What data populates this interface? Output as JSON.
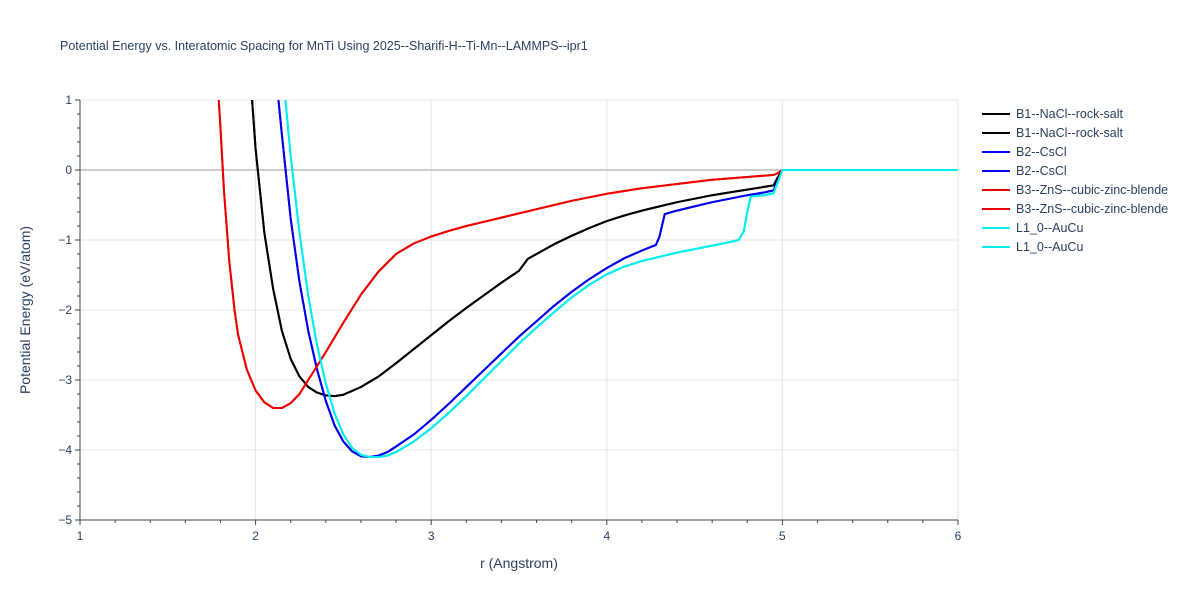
{
  "chart_data": {
    "type": "line",
    "title": "Potential Energy vs. Interatomic Spacing for MnTi Using 2025--Sharifi-H--Ti-Mn--LAMMPS--ipr1",
    "xlabel": "r (Angstrom)",
    "ylabel": "Potential Energy (eV/atom)",
    "xlim": [
      1,
      6
    ],
    "ylim": [
      -5,
      1
    ],
    "xticks": [
      1,
      2,
      3,
      4,
      5,
      6
    ],
    "xtick_labels": [
      "1",
      "2",
      "3",
      "4",
      "5",
      "6"
    ],
    "yticks": [
      1,
      0,
      -1,
      -2,
      -3,
      -4,
      -5
    ],
    "ytick_labels": [
      "1",
      "0",
      "−1",
      "−2",
      "−3",
      "−4",
      "−5"
    ],
    "grid": true,
    "legend_position": "top-right",
    "series": [
      {
        "name": "B1--NaCl--rock-salt",
        "color": "#000000",
        "x": [
          1.98,
          2.0,
          2.05,
          2.1,
          2.15,
          2.2,
          2.25,
          2.3,
          2.35,
          2.4,
          2.45,
          2.5,
          2.6,
          2.7,
          2.8,
          2.9,
          3.0,
          3.1,
          3.2,
          3.3,
          3.4,
          3.5,
          3.55,
          3.6,
          3.7,
          3.8,
          3.9,
          4.0,
          4.1,
          4.2,
          4.3,
          4.4,
          4.5,
          4.6,
          4.7,
          4.8,
          4.9,
          4.95,
          4.97,
          5.0,
          5.5,
          6.0
        ],
        "y": [
          1.0,
          0.3,
          -0.9,
          -1.7,
          -2.3,
          -2.7,
          -2.95,
          -3.1,
          -3.18,
          -3.22,
          -3.23,
          -3.21,
          -3.1,
          -2.95,
          -2.76,
          -2.56,
          -2.36,
          -2.16,
          -1.97,
          -1.79,
          -1.61,
          -1.44,
          -1.27,
          -1.2,
          -1.06,
          -0.94,
          -0.83,
          -0.73,
          -0.65,
          -0.58,
          -0.52,
          -0.46,
          -0.41,
          -0.36,
          -0.32,
          -0.28,
          -0.24,
          -0.22,
          -0.12,
          0.0,
          0.0,
          0.0
        ]
      },
      {
        "name": "B1--NaCl--rock-salt",
        "color": "#000000",
        "x": [
          1.98,
          2.0,
          2.05,
          2.1,
          2.15,
          2.2,
          2.25,
          2.3,
          2.35,
          2.4,
          2.45,
          2.5,
          2.6,
          2.7,
          2.8,
          2.9,
          3.0,
          3.1,
          3.2,
          3.3,
          3.4,
          3.5,
          3.55,
          3.6,
          3.7,
          3.8,
          3.9,
          4.0,
          4.1,
          4.2,
          4.3,
          4.4,
          4.5,
          4.6,
          4.7,
          4.8,
          4.9,
          4.95,
          4.97,
          5.0,
          5.5,
          6.0
        ],
        "y": [
          1.0,
          0.3,
          -0.9,
          -1.7,
          -2.3,
          -2.7,
          -2.95,
          -3.1,
          -3.18,
          -3.22,
          -3.23,
          -3.21,
          -3.1,
          -2.95,
          -2.76,
          -2.56,
          -2.36,
          -2.16,
          -1.97,
          -1.79,
          -1.61,
          -1.44,
          -1.27,
          -1.2,
          -1.06,
          -0.94,
          -0.83,
          -0.73,
          -0.65,
          -0.58,
          -0.52,
          -0.46,
          -0.41,
          -0.36,
          -0.32,
          -0.28,
          -0.24,
          -0.22,
          -0.12,
          0.0,
          0.0,
          0.0
        ]
      },
      {
        "name": "B2--CsCl",
        "color": "#0000ee",
        "x": [
          2.13,
          2.15,
          2.2,
          2.25,
          2.3,
          2.35,
          2.4,
          2.45,
          2.5,
          2.55,
          2.6,
          2.65,
          2.7,
          2.75,
          2.8,
          2.9,
          3.0,
          3.1,
          3.2,
          3.3,
          3.4,
          3.5,
          3.6,
          3.7,
          3.8,
          3.9,
          4.0,
          4.1,
          4.2,
          4.28,
          4.3,
          4.33,
          4.4,
          4.5,
          4.6,
          4.7,
          4.8,
          4.9,
          4.95,
          4.97,
          5.0,
          5.5,
          6.0
        ],
        "y": [
          1.0,
          0.5,
          -0.7,
          -1.6,
          -2.3,
          -2.85,
          -3.3,
          -3.65,
          -3.88,
          -4.02,
          -4.09,
          -4.1,
          -4.08,
          -4.03,
          -3.95,
          -3.78,
          -3.57,
          -3.34,
          -3.1,
          -2.86,
          -2.62,
          -2.38,
          -2.16,
          -1.94,
          -1.74,
          -1.56,
          -1.4,
          -1.26,
          -1.15,
          -1.07,
          -0.95,
          -0.63,
          -0.58,
          -0.52,
          -0.46,
          -0.41,
          -0.36,
          -0.32,
          -0.29,
          -0.18,
          0.0,
          0.0,
          0.0
        ]
      },
      {
        "name": "B2--CsCl",
        "color": "#0000ee",
        "x": [
          2.13,
          2.15,
          2.2,
          2.25,
          2.3,
          2.35,
          2.4,
          2.45,
          2.5,
          2.55,
          2.6,
          2.65,
          2.7,
          2.75,
          2.8,
          2.9,
          3.0,
          3.1,
          3.2,
          3.3,
          3.4,
          3.5,
          3.6,
          3.7,
          3.8,
          3.9,
          4.0,
          4.1,
          4.2,
          4.28,
          4.3,
          4.33,
          4.4,
          4.5,
          4.6,
          4.7,
          4.8,
          4.9,
          4.95,
          4.97,
          5.0,
          5.5,
          6.0
        ],
        "y": [
          1.0,
          0.5,
          -0.7,
          -1.6,
          -2.3,
          -2.85,
          -3.3,
          -3.65,
          -3.88,
          -4.02,
          -4.09,
          -4.1,
          -4.08,
          -4.03,
          -3.95,
          -3.78,
          -3.57,
          -3.34,
          -3.1,
          -2.86,
          -2.62,
          -2.38,
          -2.16,
          -1.94,
          -1.74,
          -1.56,
          -1.4,
          -1.26,
          -1.15,
          -1.07,
          -0.95,
          -0.63,
          -0.58,
          -0.52,
          -0.46,
          -0.41,
          -0.36,
          -0.32,
          -0.29,
          -0.18,
          0.0,
          0.0,
          0.0
        ]
      },
      {
        "name": "B3--ZnS--cubic-zinc-blende",
        "color": "#ee0000",
        "x": [
          1.79,
          1.8,
          1.82,
          1.85,
          1.88,
          1.9,
          1.95,
          2.0,
          2.05,
          2.1,
          2.15,
          2.2,
          2.25,
          2.3,
          2.4,
          2.5,
          2.6,
          2.7,
          2.8,
          2.9,
          3.0,
          3.1,
          3.2,
          3.3,
          3.4,
          3.5,
          3.6,
          3.7,
          3.8,
          3.9,
          4.0,
          4.1,
          4.2,
          4.3,
          4.4,
          4.5,
          4.6,
          4.7,
          4.8,
          4.9,
          4.95,
          4.97,
          5.0,
          5.5,
          6.0
        ],
        "y": [
          1.0,
          0.6,
          -0.3,
          -1.3,
          -2.0,
          -2.35,
          -2.85,
          -3.15,
          -3.32,
          -3.4,
          -3.4,
          -3.33,
          -3.2,
          -3.0,
          -2.6,
          -2.18,
          -1.78,
          -1.45,
          -1.2,
          -1.05,
          -0.95,
          -0.87,
          -0.8,
          -0.74,
          -0.68,
          -0.62,
          -0.56,
          -0.5,
          -0.44,
          -0.39,
          -0.34,
          -0.3,
          -0.26,
          -0.23,
          -0.2,
          -0.17,
          -0.14,
          -0.12,
          -0.1,
          -0.08,
          -0.07,
          -0.05,
          0.0,
          0.0,
          0.0
        ]
      },
      {
        "name": "B3--ZnS--cubic-zinc-blende",
        "color": "#ee0000",
        "x": [
          1.79,
          1.8,
          1.82,
          1.85,
          1.88,
          1.9,
          1.95,
          2.0,
          2.05,
          2.1,
          2.15,
          2.2,
          2.25,
          2.3,
          2.4,
          2.5,
          2.6,
          2.7,
          2.8,
          2.9,
          3.0,
          3.1,
          3.2,
          3.3,
          3.4,
          3.5,
          3.6,
          3.7,
          3.8,
          3.9,
          4.0,
          4.1,
          4.2,
          4.3,
          4.4,
          4.5,
          4.6,
          4.7,
          4.8,
          4.9,
          4.95,
          4.97,
          5.0,
          5.5,
          6.0
        ],
        "y": [
          1.0,
          0.6,
          -0.3,
          -1.3,
          -2.0,
          -2.35,
          -2.85,
          -3.15,
          -3.32,
          -3.4,
          -3.4,
          -3.33,
          -3.2,
          -3.0,
          -2.6,
          -2.18,
          -1.78,
          -1.45,
          -1.2,
          -1.05,
          -0.95,
          -0.87,
          -0.8,
          -0.74,
          -0.68,
          -0.62,
          -0.56,
          -0.5,
          -0.44,
          -0.39,
          -0.34,
          -0.3,
          -0.26,
          -0.23,
          -0.2,
          -0.17,
          -0.14,
          -0.12,
          -0.1,
          -0.08,
          -0.07,
          -0.05,
          0.0,
          0.0,
          0.0
        ]
      },
      {
        "name": "L1_0--AuCu",
        "color": "#00eeee",
        "x": [
          2.17,
          2.2,
          2.25,
          2.3,
          2.35,
          2.4,
          2.45,
          2.5,
          2.55,
          2.6,
          2.65,
          2.7,
          2.75,
          2.8,
          2.9,
          3.0,
          3.1,
          3.2,
          3.3,
          3.4,
          3.5,
          3.6,
          3.7,
          3.8,
          3.9,
          4.0,
          4.1,
          4.2,
          4.3,
          4.4,
          4.5,
          4.6,
          4.7,
          4.75,
          4.78,
          4.8,
          4.82,
          4.85,
          4.9,
          4.95,
          4.97,
          5.0,
          5.5,
          6.0
        ],
        "y": [
          1.0,
          0.2,
          -0.9,
          -1.8,
          -2.5,
          -3.05,
          -3.48,
          -3.78,
          -3.97,
          -4.07,
          -4.1,
          -4.1,
          -4.08,
          -4.03,
          -3.88,
          -3.69,
          -3.47,
          -3.23,
          -2.98,
          -2.73,
          -2.48,
          -2.25,
          -2.03,
          -1.82,
          -1.64,
          -1.49,
          -1.38,
          -1.3,
          -1.24,
          -1.18,
          -1.13,
          -1.08,
          -1.03,
          -1.0,
          -0.88,
          -0.6,
          -0.38,
          -0.37,
          -0.36,
          -0.33,
          -0.2,
          0.0,
          0.0,
          0.0
        ]
      },
      {
        "name": "L1_0--AuCu",
        "color": "#00eeee",
        "x": [
          2.17,
          2.2,
          2.25,
          2.3,
          2.35,
          2.4,
          2.45,
          2.5,
          2.55,
          2.6,
          2.65,
          2.7,
          2.75,
          2.8,
          2.9,
          3.0,
          3.1,
          3.2,
          3.3,
          3.4,
          3.5,
          3.6,
          3.7,
          3.8,
          3.9,
          4.0,
          4.1,
          4.2,
          4.3,
          4.4,
          4.5,
          4.6,
          4.7,
          4.75,
          4.78,
          4.8,
          4.82,
          4.85,
          4.9,
          4.95,
          4.97,
          5.0,
          5.5,
          6.0
        ],
        "y": [
          1.0,
          0.2,
          -0.9,
          -1.8,
          -2.5,
          -3.05,
          -3.48,
          -3.78,
          -3.97,
          -4.07,
          -4.1,
          -4.1,
          -4.08,
          -4.03,
          -3.88,
          -3.69,
          -3.47,
          -3.23,
          -2.98,
          -2.73,
          -2.48,
          -2.25,
          -2.03,
          -1.82,
          -1.64,
          -1.49,
          -1.38,
          -1.3,
          -1.24,
          -1.18,
          -1.13,
          -1.08,
          -1.03,
          -1.0,
          -0.88,
          -0.6,
          -0.38,
          -0.37,
          -0.36,
          -0.33,
          -0.2,
          0.0,
          0.0,
          0.0
        ]
      }
    ]
  }
}
